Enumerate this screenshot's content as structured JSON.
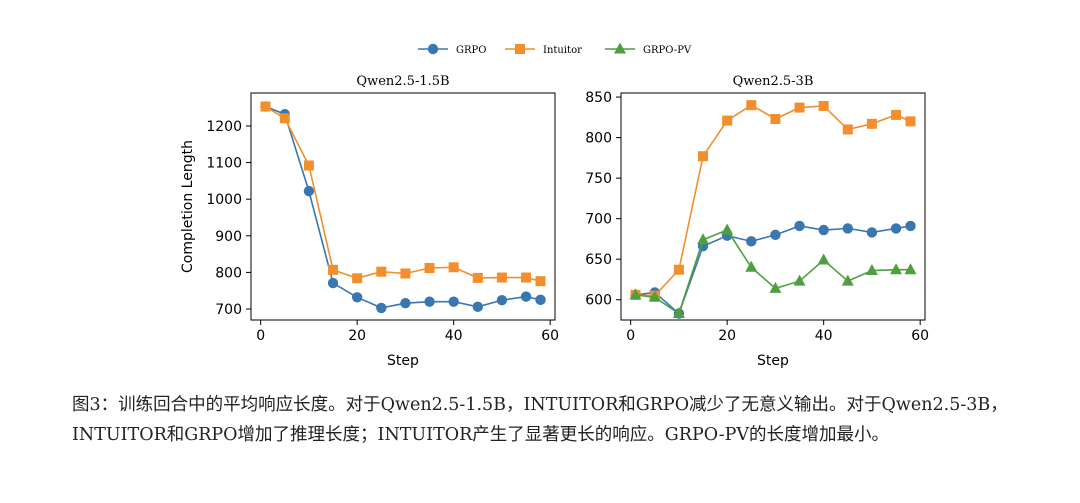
{
  "legend": [
    {
      "name": "GRPO",
      "color": "#3a76b0",
      "marker": "circle"
    },
    {
      "name": "Intuitor",
      "color": "#f28e2b",
      "marker": "square"
    },
    {
      "name": "GRPO-PV",
      "color": "#4e9f3d",
      "marker": "triangle"
    }
  ],
  "chart_data": [
    {
      "type": "line",
      "title": "Qwen2.5-1.5B",
      "xlabel": "Step",
      "ylabel": "Completion Length",
      "xlim": [
        -2,
        61
      ],
      "ylim": [
        670,
        1290
      ],
      "xticks": [
        0,
        20,
        40,
        60
      ],
      "yticks": [
        700,
        800,
        900,
        1000,
        1100,
        1200
      ],
      "series": [
        {
          "name": "GRPO",
          "color": "#3a76b0",
          "marker": "circle",
          "x": [
            1,
            5,
            10,
            15,
            20,
            25,
            30,
            35,
            40,
            45,
            50,
            55,
            58
          ],
          "y": [
            1253,
            1232,
            1022,
            771,
            732,
            703,
            716,
            720,
            720,
            706,
            724,
            734,
            725
          ]
        },
        {
          "name": "Intuitor",
          "color": "#f28e2b",
          "marker": "square",
          "x": [
            1,
            5,
            10,
            15,
            20,
            25,
            30,
            35,
            40,
            45,
            50,
            55,
            58
          ],
          "y": [
            1253,
            1221,
            1092,
            807,
            784,
            802,
            797,
            812,
            814,
            785,
            786,
            786,
            776
          ]
        }
      ]
    },
    {
      "type": "line",
      "title": "Qwen2.5-3B",
      "xlabel": "Step",
      "ylabel": "",
      "xlim": [
        -2,
        61
      ],
      "ylim": [
        575,
        855
      ],
      "xticks": [
        0,
        20,
        40,
        60
      ],
      "yticks": [
        600,
        650,
        700,
        750,
        800,
        850
      ],
      "series": [
        {
          "name": "GRPO",
          "color": "#3a76b0",
          "marker": "circle",
          "x": [
            1,
            5,
            10,
            15,
            20,
            25,
            30,
            35,
            40,
            45,
            50,
            55,
            58
          ],
          "y": [
            606,
            609,
            583,
            666,
            679,
            672,
            680,
            691,
            686,
            688,
            683,
            688,
            691
          ]
        },
        {
          "name": "Intuitor",
          "color": "#f28e2b",
          "marker": "square",
          "x": [
            1,
            5,
            10,
            15,
            20,
            25,
            30,
            35,
            40,
            45,
            50,
            55,
            58
          ],
          "y": [
            606,
            605,
            637,
            777,
            821,
            840,
            823,
            837,
            839,
            810,
            817,
            828,
            820
          ]
        },
        {
          "name": "GRPO-PV",
          "color": "#4e9f3d",
          "marker": "triangle",
          "x": [
            1,
            5,
            10,
            15,
            20,
            25,
            30,
            35,
            40,
            45,
            50,
            55,
            58
          ],
          "y": [
            606,
            603,
            583,
            674,
            686,
            640,
            614,
            623,
            649,
            623,
            636,
            637,
            637
          ]
        }
      ]
    }
  ],
  "caption": "图3：训练回合中的平均响应长度。对于Qwen2.5-1.5B，INTUITOR和GRPO减少了无意义输出。对于Qwen2.5-3B，INTUITOR和GRPO增加了推理长度；INTUITOR产生了显著更长的响应。GRPO-PV的长度增加最小。"
}
